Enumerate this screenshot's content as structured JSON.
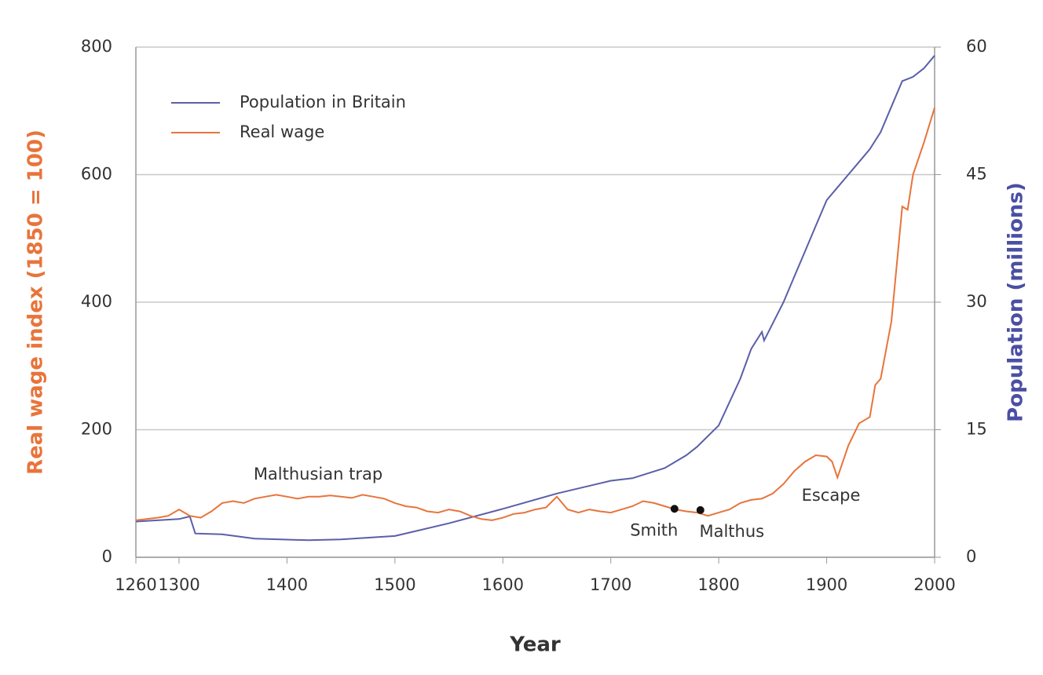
{
  "chart_data": {
    "type": "line",
    "xlabel": "Year",
    "ylabel": "Real wage index (1850 = 100)",
    "y2label": "Population (millions)",
    "xlim": [
      1260,
      2000
    ],
    "xticks": [
      1260,
      1300,
      1400,
      1500,
      1600,
      1700,
      1800,
      1900,
      2000
    ],
    "ylim": [
      0,
      800
    ],
    "yticks": [
      0,
      200,
      400,
      600,
      800
    ],
    "y2lim": [
      0,
      60
    ],
    "y2ticks": [
      0,
      15,
      30,
      45,
      60
    ],
    "grid": true,
    "legend": "upper left",
    "ylabel_color": "#e8743b",
    "y2label_color": "#4a4fa3",
    "series": [
      {
        "name": "Population in Britain",
        "color": "#5a5fa8",
        "axis": "y2",
        "x": [
          1260,
          1300,
          1310,
          1315,
          1340,
          1370,
          1420,
          1450,
          1500,
          1550,
          1600,
          1650,
          1700,
          1720,
          1750,
          1770,
          1780,
          1800,
          1820,
          1830,
          1840,
          1842,
          1850,
          1860,
          1870,
          1880,
          1890,
          1900,
          1910,
          1920,
          1930,
          1940,
          1950,
          1960,
          1970,
          1980,
          1990,
          2000
        ],
        "values": [
          4.2,
          4.5,
          4.8,
          2.8,
          2.7,
          2.2,
          2.0,
          2.1,
          2.5,
          4.0,
          5.7,
          7.5,
          9.0,
          9.3,
          10.5,
          12,
          13,
          15.5,
          21,
          24.5,
          26.5,
          25.5,
          27.5,
          30,
          33,
          36,
          39,
          42,
          43.5,
          45,
          46.5,
          48,
          50,
          53,
          56,
          56.5,
          57.5,
          59
        ]
      },
      {
        "name": "Real wage",
        "color": "#e8743b",
        "x": [
          1260,
          1270,
          1280,
          1290,
          1300,
          1310,
          1320,
          1330,
          1340,
          1350,
          1360,
          1370,
          1380,
          1390,
          1400,
          1410,
          1420,
          1430,
          1440,
          1450,
          1460,
          1470,
          1480,
          1490,
          1500,
          1510,
          1520,
          1530,
          1540,
          1550,
          1560,
          1570,
          1580,
          1590,
          1600,
          1610,
          1620,
          1630,
          1640,
          1650,
          1660,
          1670,
          1680,
          1690,
          1700,
          1710,
          1720,
          1730,
          1740,
          1750,
          1760,
          1770,
          1780,
          1790,
          1800,
          1810,
          1820,
          1830,
          1840,
          1850,
          1860,
          1870,
          1880,
          1890,
          1900,
          1905,
          1910,
          1920,
          1930,
          1940,
          1945,
          1950,
          1960,
          1970,
          1975,
          1980,
          1990,
          2000
        ],
        "values": [
          58,
          60,
          62,
          65,
          75,
          65,
          62,
          72,
          85,
          88,
          85,
          92,
          95,
          98,
          95,
          92,
          95,
          95,
          97,
          95,
          93,
          98,
          95,
          92,
          85,
          80,
          78,
          72,
          70,
          75,
          72,
          65,
          60,
          58,
          62,
          68,
          70,
          75,
          78,
          95,
          75,
          70,
          75,
          72,
          70,
          75,
          80,
          88,
          85,
          80,
          75,
          72,
          70,
          65,
          70,
          75,
          85,
          90,
          92,
          100,
          115,
          135,
          150,
          160,
          158,
          150,
          125,
          175,
          210,
          220,
          270,
          280,
          370,
          550,
          545,
          600,
          650,
          705
        ]
      }
    ],
    "annotations": [
      {
        "label": "Malthusian trap"
      },
      {
        "label": "Smith",
        "x": 1759,
        "y": 76
      },
      {
        "label": "Malthus",
        "x": 1783,
        "y": 74
      },
      {
        "label": "Escape"
      }
    ]
  }
}
